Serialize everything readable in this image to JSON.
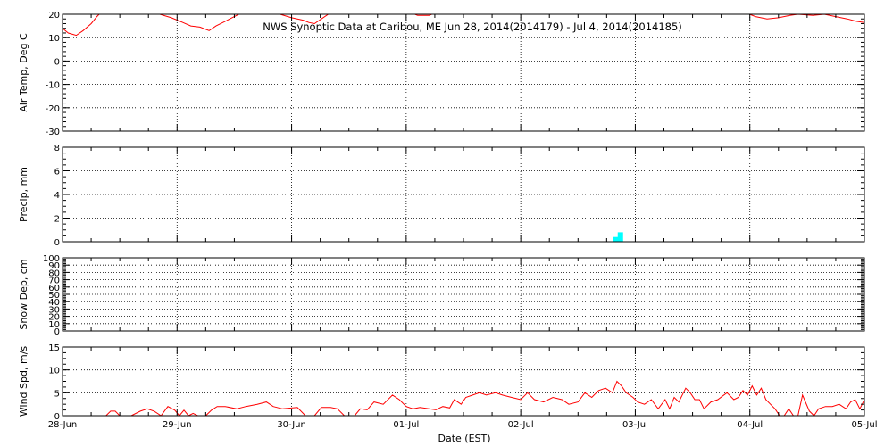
{
  "chart_data": {
    "type": "line",
    "title": "NWS Synoptic Data at Caribou, ME   Jun 28, 2014(2014179) - Jul  4, 2014(2014185)",
    "xlabel": "Date (EST)",
    "x_tick_labels": [
      "28-Jun",
      "29-Jun",
      "30-Jun",
      "01-Jul",
      "02-Jul",
      "03-Jul",
      "04-Jul",
      "05-Jul"
    ],
    "xlim": [
      0,
      7
    ],
    "x_unit": "days since 28-Jun 00:00 EST",
    "grid": true,
    "colors": {
      "line": "#ff0000",
      "precip": "#00ffff",
      "frame": "#000000"
    },
    "panels": [
      {
        "id": "air-temp",
        "ylabel": "Air Temp, Deg C",
        "ylim": [
          -30,
          20
        ],
        "yticks": [
          -30,
          -20,
          -10,
          0,
          10,
          20
        ],
        "type": "line",
        "series": [
          {
            "color": "#ff0000",
            "points": [
              [
                0.0,
                14
              ],
              [
                0.05,
                12
              ],
              [
                0.12,
                11
              ],
              [
                0.18,
                13
              ],
              [
                0.25,
                16
              ],
              [
                0.3,
                19
              ],
              [
                0.33,
                20.5
              ],
              [
                0.8,
                21
              ],
              [
                0.85,
                20
              ],
              [
                0.95,
                18.5
              ],
              [
                1.05,
                16.5
              ],
              [
                1.12,
                15
              ],
              [
                1.2,
                14.5
              ],
              [
                1.28,
                13
              ],
              [
                1.34,
                15
              ],
              [
                1.42,
                17
              ],
              [
                1.5,
                19
              ],
              [
                1.56,
                20.5
              ],
              [
                1.8,
                21
              ],
              [
                1.9,
                20
              ],
              [
                2.0,
                18.5
              ],
              [
                2.1,
                17.5
              ],
              [
                2.15,
                16.5
              ],
              [
                2.2,
                16
              ],
              [
                2.26,
                18
              ],
              [
                2.32,
                20
              ],
              [
                2.36,
                20.5
              ],
              [
                3.05,
                20.5
              ],
              [
                3.1,
                19.5
              ],
              [
                3.2,
                19.5
              ],
              [
                3.25,
                20.5
              ],
              [
                5.97,
                20.5
              ],
              [
                6.05,
                19
              ],
              [
                6.15,
                18
              ],
              [
                6.25,
                18.5
              ],
              [
                6.35,
                19.5
              ],
              [
                6.42,
                20
              ],
              [
                6.55,
                19.5
              ],
              [
                6.65,
                20
              ],
              [
                6.75,
                19
              ],
              [
                6.85,
                18
              ],
              [
                6.93,
                17
              ],
              [
                7.0,
                16.5
              ]
            ]
          }
        ]
      },
      {
        "id": "precip",
        "ylabel": "Precip, mm",
        "ylim": [
          0,
          8
        ],
        "yticks": [
          0,
          2,
          4,
          6,
          8
        ],
        "type": "bar",
        "series": [
          {
            "color": "#00ffff",
            "points": [
              [
                4.83,
                0.4
              ],
              [
                4.87,
                0.8
              ]
            ]
          }
        ]
      },
      {
        "id": "snow-depth",
        "ylabel": "Snow Dep, cm",
        "ylim": [
          0,
          100
        ],
        "yticks": [
          0,
          10,
          20,
          30,
          40,
          50,
          60,
          70,
          80,
          90,
          100
        ],
        "type": "line",
        "series": []
      },
      {
        "id": "wind-speed",
        "ylabel": "Wind Spd, m/s",
        "ylim": [
          0,
          15
        ],
        "yticks": [
          0,
          5,
          10,
          15
        ],
        "type": "line",
        "series": [
          {
            "color": "#ff0000",
            "points": [
              [
                0.0,
                0
              ],
              [
                0.2,
                0
              ],
              [
                0.38,
                0
              ],
              [
                0.42,
                1
              ],
              [
                0.46,
                1
              ],
              [
                0.5,
                0
              ],
              [
                0.6,
                0
              ],
              [
                0.68,
                1
              ],
              [
                0.74,
                1.5
              ],
              [
                0.8,
                1
              ],
              [
                0.86,
                0
              ],
              [
                0.92,
                2
              ],
              [
                0.98,
                1.2
              ],
              [
                1.02,
                0
              ],
              [
                1.06,
                1.2
              ],
              [
                1.1,
                0
              ],
              [
                1.14,
                0.5
              ],
              [
                1.18,
                0
              ],
              [
                1.25,
                0
              ],
              [
                1.3,
                1.2
              ],
              [
                1.35,
                2
              ],
              [
                1.42,
                2
              ],
              [
                1.52,
                1.5
              ],
              [
                1.6,
                2
              ],
              [
                1.7,
                2.5
              ],
              [
                1.78,
                3
              ],
              [
                1.84,
                2
              ],
              [
                1.92,
                1.5
              ],
              [
                2.05,
                1.8
              ],
              [
                2.12,
                0
              ],
              [
                2.2,
                0
              ],
              [
                2.26,
                1.8
              ],
              [
                2.34,
                1.8
              ],
              [
                2.4,
                1.5
              ],
              [
                2.46,
                0
              ],
              [
                2.55,
                0
              ],
              [
                2.6,
                1.5
              ],
              [
                2.66,
                1.3
              ],
              [
                2.72,
                3
              ],
              [
                2.8,
                2.5
              ],
              [
                2.88,
                4.5
              ],
              [
                2.94,
                3.5
              ],
              [
                3.0,
                2
              ],
              [
                3.06,
                1.5
              ],
              [
                3.12,
                1.8
              ],
              [
                3.2,
                1.5
              ],
              [
                3.26,
                1.3
              ],
              [
                3.32,
                2
              ],
              [
                3.38,
                1.7
              ],
              [
                3.42,
                3.5
              ],
              [
                3.48,
                2.5
              ],
              [
                3.52,
                4
              ],
              [
                3.58,
                4.5
              ],
              [
                3.64,
                5
              ],
              [
                3.7,
                4.5
              ],
              [
                3.78,
                5
              ],
              [
                3.84,
                4.5
              ],
              [
                3.92,
                4
              ],
              [
                4.0,
                3.5
              ],
              [
                4.06,
                5
              ],
              [
                4.12,
                3.5
              ],
              [
                4.2,
                3
              ],
              [
                4.28,
                4
              ],
              [
                4.36,
                3.5
              ],
              [
                4.42,
                2.5
              ],
              [
                4.5,
                3
              ],
              [
                4.56,
                5
              ],
              [
                4.62,
                4
              ],
              [
                4.68,
                5.5
              ],
              [
                4.74,
                6
              ],
              [
                4.8,
                5
              ],
              [
                4.84,
                7.5
              ],
              [
                4.88,
                6.5
              ],
              [
                4.92,
                5
              ],
              [
                4.98,
                4
              ],
              [
                5.02,
                3
              ],
              [
                5.08,
                2.5
              ],
              [
                5.14,
                3.5
              ],
              [
                5.2,
                1.5
              ],
              [
                5.26,
                3.5
              ],
              [
                5.3,
                1.5
              ],
              [
                5.34,
                4
              ],
              [
                5.38,
                3
              ],
              [
                5.44,
                6
              ],
              [
                5.48,
                5
              ],
              [
                5.52,
                3.5
              ],
              [
                5.56,
                3.5
              ],
              [
                5.6,
                1.5
              ],
              [
                5.66,
                3
              ],
              [
                5.72,
                3.5
              ],
              [
                5.8,
                5
              ],
              [
                5.86,
                3.5
              ],
              [
                5.9,
                4
              ],
              [
                5.94,
                5.5
              ],
              [
                5.98,
                4.5
              ],
              [
                6.02,
                6.5
              ],
              [
                6.06,
                4.5
              ],
              [
                6.1,
                6
              ],
              [
                6.14,
                3.5
              ],
              [
                6.18,
                2.5
              ],
              [
                6.22,
                1.5
              ],
              [
                6.26,
                0
              ],
              [
                6.3,
                0
              ],
              [
                6.34,
                1.5
              ],
              [
                6.38,
                0
              ],
              [
                6.42,
                0
              ],
              [
                6.46,
                4.5
              ],
              [
                6.52,
                1
              ],
              [
                6.56,
                0
              ],
              [
                6.6,
                1.5
              ],
              [
                6.66,
                2
              ],
              [
                6.72,
                2
              ],
              [
                6.78,
                2.5
              ],
              [
                6.84,
                1.5
              ],
              [
                6.88,
                3
              ],
              [
                6.92,
                3.5
              ],
              [
                6.96,
                1.5
              ],
              [
                7.0,
                3.5
              ]
            ]
          }
        ]
      }
    ]
  }
}
